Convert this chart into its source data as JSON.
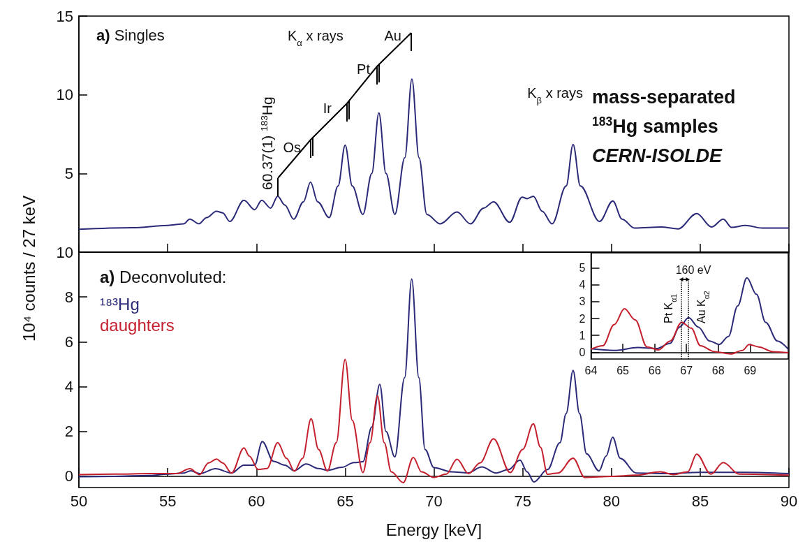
{
  "chart_data": [
    {
      "type": "line",
      "ylabel": null,
      "xlim": [
        50,
        90
      ],
      "xticks": [
        50,
        55,
        60,
        65,
        70,
        75,
        80,
        85,
        90
      ],
      "ylim": [
        0,
        15
      ],
      "yticks": [
        {
          "value": 0,
          "label": null
        },
        5,
        10,
        15
      ],
      "tick_labels": "y",
      "x": [
        50,
        53,
        55,
        55.9,
        56.25,
        56.76,
        57.2,
        57.75,
        58.1,
        58.5,
        59.3,
        59.9,
        60.3,
        60.8,
        61.2,
        61.6,
        62.1,
        62.65,
        63.05,
        63.45,
        64.1,
        64.6,
        65.0,
        65.4,
        66.0,
        66.5,
        66.9,
        67.3,
        67.8,
        68.36,
        68.76,
        69.16,
        69.6,
        70.35,
        71.3,
        72.06,
        72.8,
        73.36,
        74.27,
        74.97,
        75.25,
        75.6,
        76.1,
        76.66,
        77.45,
        77.84,
        78.25,
        79.33,
        80.08,
        80.6,
        81.3,
        82.8,
        83.76,
        84.8,
        85.65,
        86.3,
        86.77,
        87.54,
        88.5,
        90
      ],
      "series": [
        {
          "color": "#2b2a78",
          "values": [
            1.45,
            1.55,
            1.7,
            1.8,
            2.1,
            1.8,
            2.2,
            2.6,
            2.5,
            1.95,
            3.3,
            2.7,
            3.3,
            2.8,
            3.55,
            3.0,
            2.1,
            3.2,
            4.45,
            3.2,
            2.2,
            4.2,
            6.8,
            4.2,
            2.4,
            5.0,
            8.85,
            5.0,
            2.4,
            6.0,
            11.0,
            6.0,
            2.4,
            1.8,
            2.55,
            1.8,
            2.8,
            3.2,
            1.9,
            3.5,
            3.4,
            3.55,
            2.6,
            1.8,
            4.2,
            6.85,
            4.2,
            1.95,
            3.25,
            2.1,
            1.53,
            1.6,
            1.48,
            2.45,
            1.6,
            2.1,
            1.57,
            1.7,
            1.53,
            1.53
          ]
        }
      ],
      "annotations": [
        "a) Singles",
        "60.37(1) $^{183}$Hg",
        "Os",
        "Ir",
        "Pt",
        "Au",
        "K$_{α}$ x rays",
        "K$_{β}$ x rays",
        "mass-separated",
        "$^{183}$Hg samples",
        "CERN-ISOLDE"
      ]
    },
    {
      "type": "line",
      "xlabel": "Energy [keV]",
      "ylabel": "10⁴ counts / 27 keV",
      "xlim": [
        50,
        90
      ],
      "xticks": [
        50,
        55,
        60,
        65,
        70,
        75,
        80,
        85,
        90
      ],
      "ylim": [
        -0.5,
        10
      ],
      "yticks": [
        0,
        2,
        4,
        6,
        8,
        10
      ],
      "legend": "top left",
      "series": [
        {
          "name": "¹⁸³Hg",
          "color": "#2b2a78",
          "x": [
            50,
            52,
            54,
            55,
            55.9,
            56.3,
            56.8,
            57.7,
            58.6,
            59.3,
            59.9,
            60.33,
            60.97,
            61.6,
            62.14,
            62.8,
            63.5,
            64.0,
            64.8,
            65.5,
            66.0,
            66.5,
            66.95,
            67.3,
            67.8,
            68.35,
            68.75,
            69.15,
            69.5,
            70.0,
            71.0,
            71.9,
            72.7,
            73.5,
            74.2,
            74.85,
            75.25,
            75.63,
            76.4,
            77.1,
            77.45,
            77.84,
            78.2,
            78.6,
            79.3,
            79.7,
            80.07,
            80.5,
            81.4,
            83,
            85,
            87.5,
            90
          ],
          "values": [
            -0.02,
            0.0,
            0.04,
            0.1,
            0.15,
            0.25,
            0.12,
            0.34,
            0.15,
            0.5,
            0.5,
            1.55,
            0.67,
            0.5,
            0.25,
            0.55,
            0.35,
            0.27,
            0.4,
            0.61,
            0.65,
            2.2,
            4.1,
            2.0,
            0.87,
            4.4,
            8.8,
            4.4,
            1.2,
            0.39,
            0.2,
            0.15,
            0.42,
            0.15,
            0.3,
            0.72,
            0.2,
            -0.25,
            0.3,
            1.5,
            2.8,
            4.73,
            2.8,
            1.0,
            0.24,
            0.9,
            1.74,
            0.8,
            0.15,
            0.12,
            0.18,
            0.18,
            0.12
          ]
        },
        {
          "name": "daughters",
          "color": "#c4202e",
          "x": [
            50,
            52,
            54,
            55.5,
            56.25,
            56.8,
            57.3,
            57.75,
            58.1,
            58.6,
            59.3,
            59.6,
            60.1,
            60.6,
            61.2,
            61.7,
            62.14,
            62.6,
            63.08,
            63.5,
            64.0,
            64.5,
            65.0,
            65.4,
            66.0,
            66.4,
            66.82,
            67.2,
            67.6,
            68.27,
            68.84,
            69.3,
            70.0,
            70.7,
            71.3,
            71.95,
            72.6,
            73.36,
            74.3,
            75.0,
            75.6,
            76.0,
            76.4,
            77.0,
            77.84,
            78.5,
            80,
            81.4,
            82.75,
            83.5,
            84.3,
            84.8,
            85.6,
            86.3,
            87.2,
            90
          ],
          "values": [
            0.08,
            0.1,
            0.12,
            0.12,
            0.34,
            0.08,
            0.6,
            0.77,
            0.6,
            0.15,
            1.27,
            0.9,
            0.3,
            0.35,
            1.5,
            0.8,
            0.23,
            0.8,
            2.57,
            1.2,
            0.24,
            1.5,
            5.22,
            2.5,
            0.17,
            1.5,
            3.6,
            1.5,
            0.2,
            -0.28,
            0.84,
            0.2,
            -0.05,
            0.1,
            0.76,
            0.12,
            0.6,
            1.67,
            0.17,
            1.2,
            2.34,
            1.3,
            0.09,
            0.15,
            0.81,
            -0.05,
            0.0,
            0.05,
            0.2,
            0.08,
            0.2,
            0.99,
            0.1,
            0.61,
            0.1,
            0.05
          ]
        }
      ],
      "annotations": [
        "a) Deconvoluted:"
      ]
    },
    {
      "type": "line",
      "xlim": [
        64,
        70.2
      ],
      "xticks": [
        64,
        65,
        66,
        67,
        68,
        69
      ],
      "ylim": [
        -0.4,
        5.9
      ],
      "yticks": [
        0,
        1,
        2,
        3,
        4,
        5
      ],
      "series": [
        {
          "color": "#2b2a78",
          "x": [
            64.0,
            64.73,
            65.47,
            66.05,
            66.49,
            66.78,
            67.07,
            67.37,
            67.73,
            68.03,
            68.32,
            68.61,
            68.9,
            69.2,
            69.49,
            69.86,
            70.2
          ],
          "values": [
            0.21,
            0.11,
            0.28,
            0.22,
            0.53,
            1.5,
            2.06,
            1.5,
            0.67,
            0.46,
            0.94,
            2.75,
            4.42,
            3.44,
            1.78,
            0.67,
            0.18
          ]
        },
        {
          "color": "#c4202e",
          "x": [
            64.0,
            64.37,
            64.73,
            65.05,
            65.39,
            65.76,
            66.12,
            66.49,
            66.85,
            67.15,
            67.44,
            67.88,
            68.39,
            68.76,
            68.97,
            69.27,
            69.71,
            70.2
          ],
          "values": [
            0.18,
            0.39,
            1.64,
            2.58,
            1.92,
            0.32,
            0.14,
            0.67,
            1.78,
            1.43,
            0.39,
            0.04,
            -0.1,
            0.11,
            0.46,
            0.32,
            0.04,
            -0.03
          ]
        }
      ],
      "ref_lines": [
        {
          "axis": "x",
          "value": 66.83,
          "label": "Pt K$_{α1}$",
          "line_style": "dotted"
        },
        {
          "axis": "x",
          "value": 67.05,
          "label": "Au K$_{α2}$",
          "line_style": "dotted"
        }
      ],
      "annotations": [
        "160 eV"
      ]
    }
  ]
}
